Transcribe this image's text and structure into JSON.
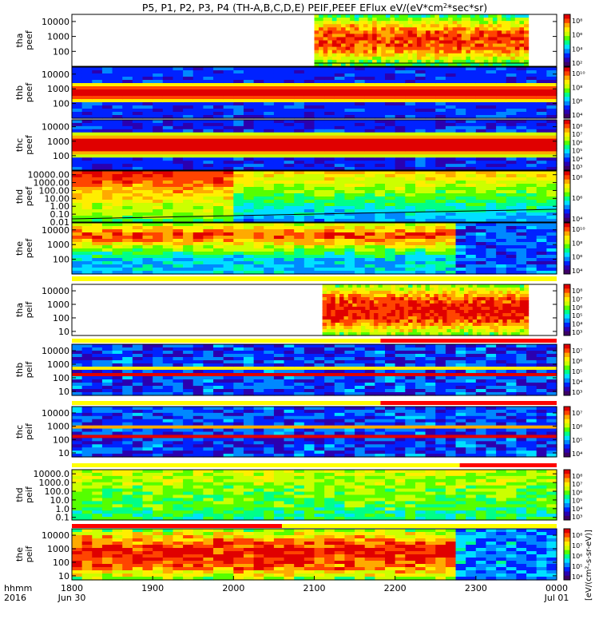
{
  "chart_data": {
    "type": "heatmap",
    "title": "P5, P1, P2, P3, P4 (TH-A,B,C,D,E) PEIF,PEEF EFlux eV/(eV*cm2*sec*sr)",
    "title_parts": {
      "main": "P5, P1, P2, P3, P4 (TH-A,B,C,D,E) PEIF,PEEF EFlux eV/(eV*cm",
      "sup": "2",
      "tail": "*sec*sr)"
    },
    "x_axis": {
      "label_line1": "hhmm",
      "label_line2": "2016",
      "range": [
        "2016-06-30 18:00",
        "2016-07-01 00:00"
      ],
      "ticks": [
        {
          "hour": 18,
          "label": "1800",
          "sub": "Jun 30"
        },
        {
          "hour": 19,
          "label": "1900",
          "sub": ""
        },
        {
          "hour": 20,
          "label": "2000",
          "sub": ""
        },
        {
          "hour": 21,
          "label": "2100",
          "sub": ""
        },
        {
          "hour": 22,
          "label": "2200",
          "sub": ""
        },
        {
          "hour": 23,
          "label": "2300",
          "sub": ""
        },
        {
          "hour": 24,
          "label": "0000",
          "sub": "Jul 01"
        }
      ]
    },
    "colorbar_label": "[eV/(cm2-s-sr-eV)]",
    "colorbar_full": "[eV/(cm²-s-sr-eV)]",
    "panels": [
      {
        "probe": "tha",
        "ylabel1": "tha",
        "ylabel2": "peef",
        "ylim": [
          10,
          30000
        ],
        "yticks": [
          {
            "v": 10000,
            "l": "10000"
          },
          {
            "v": 1000,
            "l": "1000"
          },
          {
            "v": 100,
            "l": "100"
          }
        ],
        "data_start_hour": 21.0,
        "data_end_hour": 23.65,
        "cb_ticks": [
          "10⁸",
          "10⁶",
          "10⁴",
          "10²"
        ],
        "has_line": true
      },
      {
        "probe": "thb",
        "ylabel1": "thb",
        "ylabel2": "peef",
        "ylim": [
          10,
          30000
        ],
        "yticks": [
          {
            "v": 10000,
            "l": "10000"
          },
          {
            "v": 1000,
            "l": "1000"
          },
          {
            "v": 100,
            "l": "100"
          }
        ],
        "data_start_hour": 18.0,
        "data_end_hour": 24.0,
        "cb_ticks": [
          "10¹⁰",
          "10⁸",
          "10⁶",
          "10⁴"
        ],
        "has_line": false
      },
      {
        "probe": "thc",
        "ylabel1": "thc",
        "ylabel2": "peef",
        "ylim": [
          10,
          30000
        ],
        "yticks": [
          {
            "v": 10000,
            "l": "10000"
          },
          {
            "v": 1000,
            "l": "1000"
          },
          {
            "v": 100,
            "l": "100"
          }
        ],
        "data_start_hour": 18.0,
        "data_end_hour": 24.0,
        "cb_ticks": [
          "10⁸",
          "10⁷",
          "10⁶",
          "10⁵",
          "10⁴",
          "10³"
        ],
        "has_line": false
      },
      {
        "probe": "thd",
        "ylabel1": "thd",
        "ylabel2": "peef",
        "ylim": [
          0.01,
          30000
        ],
        "yticks": [
          {
            "v": 10000,
            "l": "10000.00"
          },
          {
            "v": 1000,
            "l": "1000.00"
          },
          {
            "v": 100,
            "l": "100.00"
          },
          {
            "v": 10,
            "l": "10.00"
          },
          {
            "v": 1,
            "l": "1.00"
          },
          {
            "v": 0.1,
            "l": "0.10"
          },
          {
            "v": 0.01,
            "l": "0.01"
          }
        ],
        "data_start_hour": 18.0,
        "data_end_hour": 24.0,
        "cb_ticks": [
          "10⁸",
          "10⁶",
          "10⁴"
        ],
        "has_line": true
      },
      {
        "probe": "the",
        "ylabel1": "the",
        "ylabel2": "peef",
        "ylim": [
          10,
          30000
        ],
        "yticks": [
          {
            "v": 10000,
            "l": "10000"
          },
          {
            "v": 1000,
            "l": "1000"
          },
          {
            "v": 100,
            "l": "100"
          }
        ],
        "data_start_hour": 18.0,
        "data_end_hour": 24.0,
        "cb_ticks": [
          "10¹⁰",
          "10⁸",
          "10⁶",
          "10⁴"
        ],
        "has_line": false
      },
      {
        "probe": "tha",
        "ylabel1": "tha",
        "ylabel2": "peif",
        "ylim": [
          5,
          30000
        ],
        "yticks": [
          {
            "v": 10000,
            "l": "10000"
          },
          {
            "v": 1000,
            "l": "1000"
          },
          {
            "v": 100,
            "l": "100"
          },
          {
            "v": 10,
            "l": "10"
          }
        ],
        "data_start_hour": 21.1,
        "data_end_hour": 23.65,
        "cb_ticks": [
          "10⁸",
          "10⁷",
          "10⁶",
          "10⁵",
          "10⁴",
          "10³"
        ],
        "has_line": false
      },
      {
        "probe": "thb",
        "ylabel1": "thb",
        "ylabel2": "peif",
        "ylim": [
          5,
          30000
        ],
        "yticks": [
          {
            "v": 10000,
            "l": "10000"
          },
          {
            "v": 1000,
            "l": "1000"
          },
          {
            "v": 100,
            "l": "100"
          },
          {
            "v": 10,
            "l": "10"
          }
        ],
        "data_start_hour": 18.0,
        "data_end_hour": 24.0,
        "cb_ticks": [
          "10⁷",
          "10⁶",
          "10⁵",
          "10⁴",
          "10³"
        ],
        "has_line": false
      },
      {
        "probe": "thc",
        "ylabel1": "thc",
        "ylabel2": "peif",
        "ylim": [
          5,
          30000
        ],
        "yticks": [
          {
            "v": 10000,
            "l": "10000"
          },
          {
            "v": 1000,
            "l": "1000"
          },
          {
            "v": 100,
            "l": "100"
          },
          {
            "v": 10,
            "l": "10"
          }
        ],
        "data_start_hour": 18.0,
        "data_end_hour": 24.0,
        "cb_ticks": [
          "10⁷",
          "10⁶",
          "10⁵",
          "10⁴"
        ],
        "has_line": false
      },
      {
        "probe": "thd",
        "ylabel1": "thd",
        "ylabel2": "peif",
        "ylim": [
          0.05,
          30000
        ],
        "yticks": [
          {
            "v": 10000,
            "l": "10000.0"
          },
          {
            "v": 1000,
            "l": "1000.0"
          },
          {
            "v": 100,
            "l": "100.0"
          },
          {
            "v": 10,
            "l": "10.0"
          },
          {
            "v": 1,
            "l": "1.0"
          },
          {
            "v": 0.1,
            "l": "0.1"
          }
        ],
        "data_start_hour": 18.0,
        "data_end_hour": 24.0,
        "cb_ticks": [
          "10⁸",
          "10⁷",
          "10⁶",
          "10⁵",
          "10⁴",
          "10³"
        ],
        "has_line": false
      },
      {
        "probe": "the",
        "ylabel1": "the",
        "ylabel2": "peif",
        "ylim": [
          5,
          30000
        ],
        "yticks": [
          {
            "v": 10000,
            "l": "10000"
          },
          {
            "v": 1000,
            "l": "1000"
          },
          {
            "v": 100,
            "l": "100"
          },
          {
            "v": 10,
            "l": "10"
          }
        ],
        "data_start_hour": 18.0,
        "data_end_hour": 24.0,
        "cb_ticks": [
          "10⁸",
          "10⁷",
          "10⁶",
          "10⁵",
          "10⁴"
        ],
        "has_line": false
      }
    ],
    "status_bars": [
      {
        "after_panel": 4,
        "segments": [
          {
            "from": 18.0,
            "to": 24.0,
            "color": "#ffff00"
          }
        ]
      },
      {
        "after_panel": 5,
        "segments": [
          {
            "from": 18.0,
            "to": 21.82,
            "color": "#ffff00"
          },
          {
            "from": 21.82,
            "to": 24.0,
            "color": "#ff0000"
          }
        ]
      },
      {
        "after_panel": 6,
        "segments": [
          {
            "from": 18.0,
            "to": 21.82,
            "color": "#ffff00"
          },
          {
            "from": 21.82,
            "to": 24.0,
            "color": "#ff0000"
          }
        ]
      },
      {
        "after_panel": 7,
        "segments": [
          {
            "from": 18.0,
            "to": 22.8,
            "color": "#ffff00"
          },
          {
            "from": 22.8,
            "to": 24.0,
            "color": "#ff0000"
          }
        ]
      },
      {
        "after_panel": 8,
        "segments": [
          {
            "from": 18.0,
            "to": 20.6,
            "color": "#ff0000"
          },
          {
            "from": 20.6,
            "to": 24.0,
            "color": "#ffff00"
          }
        ]
      }
    ],
    "colors": {
      "colormap": [
        "#3d0066",
        "#2b00b0",
        "#0022ff",
        "#0088ff",
        "#00e0ff",
        "#00ff88",
        "#55ff00",
        "#ccff00",
        "#ffee00",
        "#ffaa00",
        "#ff4400",
        "#e00000"
      ],
      "axis": "#000000",
      "background": "#ffffff"
    }
  }
}
